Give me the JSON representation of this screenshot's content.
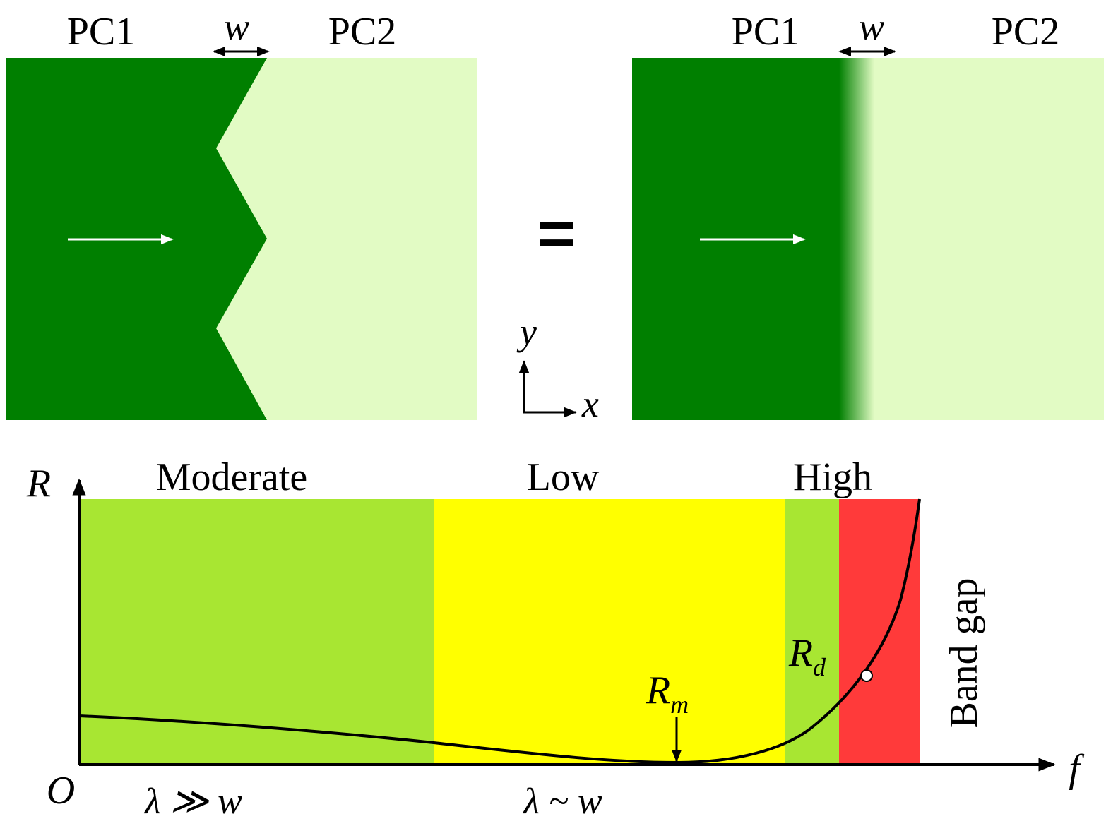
{
  "top_left": {
    "pc1_label": "PC1",
    "pc2_label": "PC2",
    "w_label": "w"
  },
  "top_right": {
    "pc1_label": "PC1",
    "pc2_label": "PC2",
    "w_label": "w"
  },
  "equals_sign": "=",
  "axes_inset": {
    "y_label": "y",
    "x_label": "x"
  },
  "graph": {
    "y_axis_label": "R",
    "x_axis_label": "f",
    "origin_label": "O",
    "regions": [
      {
        "label": "Moderate",
        "color": "#a8e632"
      },
      {
        "label": "Low",
        "color": "#ffff00"
      },
      {
        "label": "High",
        "color": "#a8e632"
      },
      {
        "label": "",
        "color": "#ff3a3a"
      }
    ],
    "band_gap_label": "Band gap",
    "rm_label": "R",
    "rm_sub": "m",
    "rd_label": "R",
    "rd_sub": "d",
    "xlabel_left": "λ ≫ w",
    "xlabel_mid": "λ ~ w"
  },
  "colors": {
    "pc1": "#007f00",
    "pc2": "#e2fbc4",
    "curve": "#000000",
    "arrow": "#ffffff"
  }
}
